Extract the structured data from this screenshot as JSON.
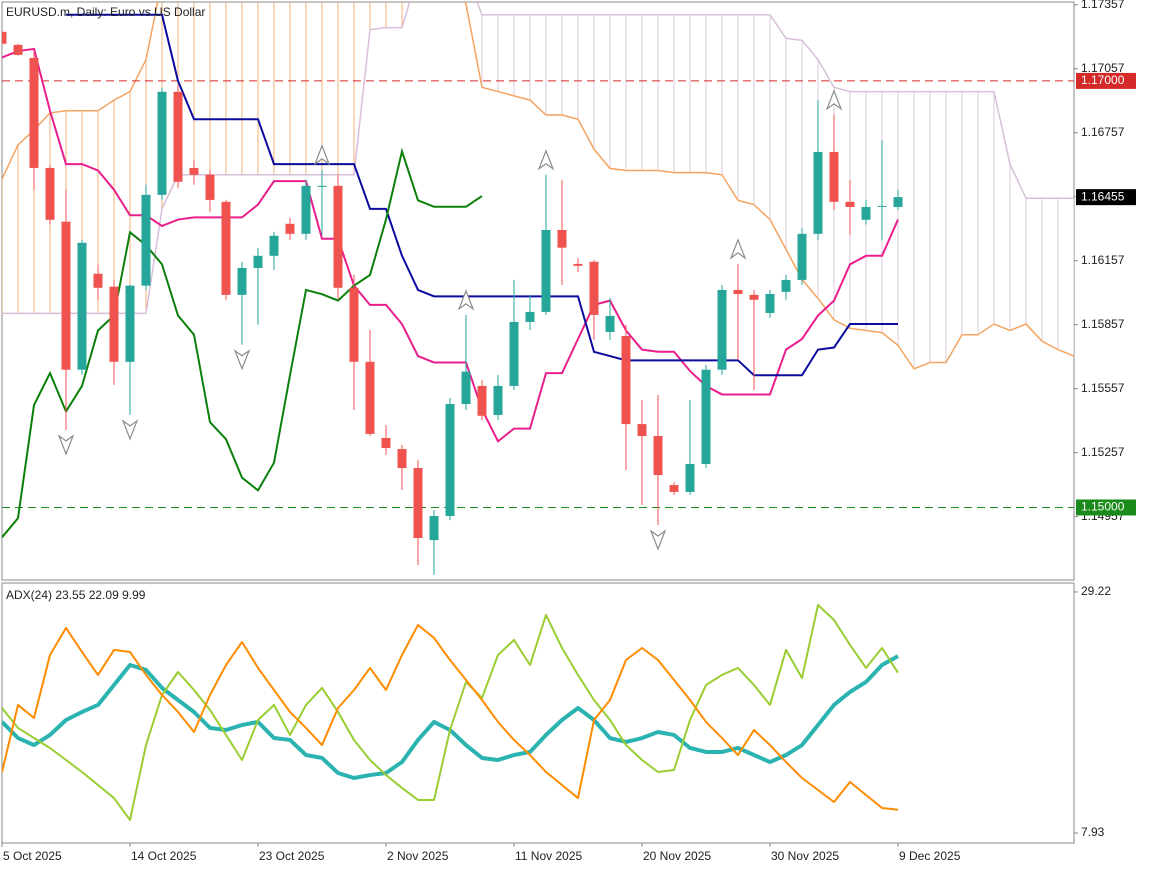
{
  "chart_data": [
    {
      "type": "candlestick",
      "title": "EURUSD.m, Daily:  Euro vs US Dollar",
      "open": [
        1.1723,
        1.17169,
        1.17108,
        1.16592,
        1.1634,
        1.15646,
        1.16096,
        1.16035,
        1.15683,
        1.1604,
        1.16466,
        1.16949,
        1.16592,
        1.1656,
        1.16433,
        1.15997,
        1.16123,
        1.1618,
        1.1633,
        1.16283,
        1.16503,
        1.16508,
        1.1603,
        1.15683,
        1.15326,
        1.15274,
        1.15185,
        1.14847,
        1.1496,
        1.15485,
        1.1557,
        1.15434,
        1.1557,
        1.1587,
        1.15917,
        1.16301,
        1.16142,
        1.16152,
        1.15823,
        1.15804,
        1.15391,
        1.15335,
        1.15105,
        1.15073,
        1.15204,
        1.15646,
        1.1602,
        1.15997,
        1.15912,
        1.16011,
        1.16067,
        1.16283,
        1.16667,
        1.16433,
        1.16349,
        1.16414,
        1.16409
      ],
      "high": [
        1.17239,
        1.17174,
        1.17136,
        1.16606,
        1.16489,
        1.16255,
        1.16138,
        1.16067,
        1.16043,
        1.16513,
        1.16968,
        1.16982,
        1.1663,
        1.16583,
        1.16442,
        1.16152,
        1.16218,
        1.16292,
        1.16358,
        1.16536,
        1.16583,
        1.1656,
        1.16091,
        1.15832,
        1.15387,
        1.15293,
        1.15223,
        1.14988,
        1.15514,
        1.15903,
        1.15598,
        1.15622,
        1.16067,
        1.15997,
        1.1656,
        1.16536,
        1.1617,
        1.16161,
        1.15982,
        1.15857,
        1.15504,
        1.15528,
        1.15119,
        1.15504,
        1.15668,
        1.16043,
        1.16142,
        1.1602,
        1.1602,
        1.16091,
        1.16311,
        1.16911,
        1.16841,
        1.16536,
        1.16442,
        1.16723,
        1.16489
      ],
      "low": [
        1.17164,
        1.17118,
        1.16489,
        1.16326,
        1.15364,
        1.15622,
        1.15974,
        1.15575,
        1.15434,
        1.1602,
        1.16442,
        1.16499,
        1.16513,
        1.16386,
        1.15974,
        1.15763,
        1.15857,
        1.16114,
        1.16255,
        1.16255,
        1.16278,
        1.15974,
        1.15457,
        1.15335,
        1.15246,
        1.15082,
        1.1473,
        1.14684,
        1.14941,
        1.15457,
        1.1541,
        1.1541,
        1.15551,
        1.15832,
        1.15903,
        1.16043,
        1.16104,
        1.15785,
        1.15785,
        1.15176,
        1.15012,
        1.14918,
        1.15059,
        1.15059,
        1.15185,
        1.15622,
        1.15692,
        1.15551,
        1.15889,
        1.15974,
        1.16043,
        1.16255,
        1.16395,
        1.16278,
        1.16326,
        1.16255,
        1.16395
      ],
      "close": [
        1.17174,
        1.17122,
        1.16592,
        1.16349,
        1.15646,
        1.16241,
        1.1603,
        1.15683,
        1.1604,
        1.16466,
        1.16949,
        1.16527,
        1.1656,
        1.16442,
        1.15997,
        1.16123,
        1.1618,
        1.16274,
        1.16283,
        1.16508,
        1.16508,
        1.1603,
        1.15683,
        1.15345,
        1.15279,
        1.15185,
        1.14857,
        1.1496,
        1.15485,
        1.15637,
        1.1543,
        1.1557,
        1.1587,
        1.15917,
        1.16301,
        1.16218,
        1.16133,
        1.15903,
        1.15898,
        1.15391,
        1.15335,
        1.15152,
        1.15073,
        1.15204,
        1.15646,
        1.1602,
        1.16001,
        1.15974,
        1.16001,
        1.16067,
        1.16283,
        1.16667,
        1.16433,
        1.16409,
        1.16409,
        1.16414,
        1.16455
      ],
      "up_color": "#26a69a",
      "down_color": "#ef5350",
      "series": [
        {
          "color": "#e91e8c",
          "values": [
            1.1711,
            1.1714,
            1.1715,
            1.1686,
            1.1661,
            1.1661,
            1.1658,
            1.1649,
            1.1637,
            1.1637,
            1.1632,
            1.1635,
            1.1636,
            1.1636,
            1.1636,
            1.1636,
            1.1642,
            1.1653,
            1.1653,
            1.1653,
            1.1626,
            1.1626,
            1.1604,
            1.1595,
            1.1595,
            1.1586,
            1.1571,
            1.1568,
            1.1568,
            1.1568,
            1.1546,
            1.1531,
            1.1537,
            1.1537,
            1.1563,
            1.1563,
            1.1579,
            1.1595,
            1.1597,
            1.1583,
            1.1574,
            1.1573,
            1.1573,
            1.1564,
            1.1557,
            1.1553,
            1.1553,
            1.1553,
            1.1553,
            1.1574,
            1.1579,
            1.159,
            1.1597,
            1.1614,
            1.1618,
            1.1618,
            1.1635
          ]
        },
        {
          "color": "#0b0ba0",
          "values": [
            null,
            null,
            null,
            null,
            1.1731,
            1.1731,
            1.1731,
            1.1731,
            1.1731,
            1.1731,
            1.1731,
            1.17,
            1.1682,
            1.1682,
            1.1682,
            1.1682,
            1.1682,
            1.1661,
            1.1661,
            1.1661,
            1.1661,
            1.1661,
            1.1661,
            1.164,
            1.164,
            1.1618,
            1.1602,
            1.1599,
            1.1599,
            1.1599,
            1.1599,
            1.1599,
            1.1599,
            1.1599,
            1.1599,
            1.1599,
            1.1599,
            1.1573,
            1.1571,
            1.1569,
            1.1569,
            1.1569,
            1.1569,
            1.1569,
            1.1569,
            1.1569,
            1.1569,
            1.1562,
            1.1562,
            1.1562,
            1.1562,
            1.1574,
            1.1575,
            1.1586,
            1.1586,
            1.1586,
            1.1586
          ]
        },
        {
          "color": "#0a800a",
          "values": [
            1.1486,
            1.1495,
            1.1548,
            1.1563,
            1.1545,
            1.1557,
            1.1583,
            1.159,
            1.1629,
            1.1623,
            1.1614,
            1.159,
            1.1581,
            1.154,
            1.1532,
            1.1514,
            1.1508,
            1.1521,
            1.1562,
            1.1602,
            1.16,
            1.1597,
            1.1604,
            1.1609,
            1.1635,
            1.1667,
            1.1644,
            1.1641,
            1.1641,
            1.1641,
            1.1646,
            null,
            null,
            null,
            null,
            null,
            null,
            null,
            null,
            null,
            null,
            null,
            null,
            null,
            null,
            null,
            null,
            null,
            null,
            null,
            null,
            null,
            null,
            null,
            null,
            null,
            null
          ]
        }
      ],
      "cloud_series": [
        {
          "color": "#f4a460",
          "values": [
            1.1654,
            1.167,
            1.1677,
            1.1685,
            1.1686,
            1.1686,
            1.1686,
            1.1691,
            1.1695,
            1.171,
            1.1747,
            1.175,
            1.175,
            1.175,
            1.175,
            1.175,
            1.175,
            1.175,
            1.175,
            1.175,
            1.175,
            1.175,
            1.175,
            1.175,
            1.175,
            1.175,
            1.175,
            1.175,
            1.175,
            1.1736,
            1.1697,
            1.1695,
            1.1693,
            1.1691,
            1.1684,
            1.1684,
            1.1682,
            1.1668,
            1.1659,
            1.1658,
            1.1658,
            1.1658,
            1.1657,
            1.1657,
            1.1657,
            1.1656,
            1.1644,
            1.1642,
            1.1635,
            1.1621,
            1.1607,
            1.1598,
            1.1588,
            1.1584,
            1.1583,
            1.1582,
            1.1576,
            1.1565,
            1.1568,
            1.1568,
            1.1581,
            1.1581,
            1.1586,
            1.1583,
            1.1586,
            1.1578,
            1.1574,
            1.1571
          ]
        },
        {
          "color": "#d8bfd8",
          "values": [
            1.1591,
            1.1591,
            1.1591,
            1.1591,
            1.1591,
            1.1591,
            1.1591,
            1.1591,
            1.1591,
            1.1591,
            1.164,
            1.1656,
            1.1656,
            1.1656,
            1.1656,
            1.1656,
            1.1656,
            1.1656,
            1.1656,
            1.1656,
            1.1656,
            1.1656,
            1.1656,
            1.1724,
            1.1725,
            1.1725,
            1.175,
            1.175,
            1.175,
            1.175,
            1.1731,
            1.1731,
            1.1731,
            1.1731,
            1.1731,
            1.1731,
            1.1731,
            1.1731,
            1.1731,
            1.1731,
            1.1731,
            1.1731,
            1.1731,
            1.1731,
            1.1731,
            1.1731,
            1.1731,
            1.1731,
            1.1731,
            1.172,
            1.1719,
            1.171,
            1.1697,
            1.1695,
            1.1695,
            1.1695,
            1.1695,
            1.1695,
            1.1695,
            1.1695,
            1.1695,
            1.1695,
            1.1695,
            1.1661,
            1.1645,
            1.1645,
            1.1645,
            1.1645
          ]
        }
      ],
      "fractal_color": "#8c8c8c",
      "fractals_up": [
        null,
        null,
        null,
        null,
        null,
        null,
        null,
        null,
        null,
        null,
        null,
        null,
        null,
        null,
        null,
        null,
        null,
        null,
        null,
        null,
        1.16583,
        null,
        null,
        null,
        null,
        null,
        null,
        null,
        null,
        1.15903,
        null,
        null,
        null,
        null,
        1.1656,
        null,
        null,
        null,
        null,
        null,
        null,
        null,
        null,
        null,
        null,
        null,
        1.16142,
        null,
        null,
        null,
        null,
        null,
        1.16841,
        null,
        null,
        null,
        null
      ],
      "fractals_down": [
        null,
        null,
        null,
        null,
        1.15364,
        null,
        null,
        null,
        1.15434,
        null,
        null,
        null,
        null,
        null,
        null,
        1.15763,
        null,
        null,
        null,
        null,
        null,
        null,
        null,
        null,
        null,
        null,
        null,
        1.14684,
        null,
        null,
        null,
        null,
        null,
        null,
        null,
        null,
        null,
        null,
        null,
        null,
        null,
        1.14918,
        null,
        null,
        null,
        null,
        null,
        null,
        null,
        null,
        null,
        null,
        null,
        null,
        null,
        null,
        null
      ],
      "ylim": [
        1.1466,
        1.1737
      ],
      "yticks": [
        1.17357,
        1.17057,
        1.16757,
        1.16457,
        1.16157,
        1.15857,
        1.15557,
        1.15257,
        1.14957
      ],
      "levels": [
        {
          "value": 1.17,
          "label": "1.17000",
          "color": "#d42a2a"
        },
        {
          "value": 1.15,
          "label": "1.15000",
          "color": "#1a8a1a"
        }
      ],
      "last_price": 1.16455
    },
    {
      "type": "line",
      "label": "ADX(24) 23.55 22.09 9.99",
      "categories": [
        "5 Oct 2025",
        null,
        null,
        null,
        null,
        null,
        null,
        null,
        "14 Oct 2025",
        null,
        null,
        null,
        null,
        null,
        null,
        null,
        "23 Oct 2025",
        null,
        null,
        null,
        null,
        null,
        null,
        null,
        "2 Nov 2025",
        null,
        null,
        null,
        null,
        null,
        null,
        null,
        "11 Nov 2025",
        null,
        null,
        null,
        null,
        null,
        null,
        null,
        "20 Nov 2025",
        null,
        null,
        null,
        null,
        null,
        null,
        null,
        "30 Nov 2025",
        null,
        null,
        null,
        null,
        null,
        null,
        null,
        "9 Dec 2025"
      ],
      "series": [
        {
          "color": "#2ab3b0",
          "width": 4,
          "values": [
            17.74,
            16.32,
            15.7,
            16.59,
            17.91,
            18.62,
            19.24,
            21.0,
            22.77,
            22.33,
            20.74,
            19.68,
            18.62,
            17.21,
            17.03,
            17.47,
            17.74,
            16.32,
            16.15,
            14.82,
            14.56,
            13.23,
            12.79,
            13.05,
            13.23,
            14.2,
            16.15,
            17.74,
            17.03,
            15.7,
            14.56,
            14.38,
            14.82,
            15.09,
            16.59,
            17.91,
            18.97,
            17.91,
            16.32,
            15.97,
            16.32,
            16.85,
            16.59,
            15.44,
            15.09,
            15.09,
            15.44,
            14.82,
            14.2,
            14.82,
            15.7,
            17.47,
            19.24,
            20.39,
            21.27,
            22.77,
            23.55
          ]
        },
        {
          "color": "#9acd32",
          "width": 2,
          "values": [
            18.97,
            17.21,
            16.32,
            15.44,
            14.38,
            13.32,
            12.17,
            11.02,
            9.08,
            15.7,
            20.12,
            22.15,
            20.56,
            18.8,
            16.59,
            14.38,
            17.91,
            19.24,
            16.59,
            19.24,
            20.74,
            18.62,
            16.15,
            14.38,
            13.05,
            11.91,
            10.85,
            10.85,
            17.03,
            21.27,
            19.86,
            23.65,
            24.98,
            22.77,
            27.19,
            24.27,
            21.89,
            19.68,
            17.91,
            15.7,
            14.38,
            13.32,
            13.5,
            17.91,
            21.0,
            21.89,
            22.51,
            21.0,
            19.24,
            24.1,
            21.62,
            28.07,
            26.75,
            24.54,
            22.51,
            24.27,
            22.09
          ]
        },
        {
          "color": "#ff8c00",
          "width": 2,
          "values": [
            13.32,
            19.24,
            18.09,
            23.65,
            26.04,
            23.92,
            21.89,
            24.1,
            23.92,
            21.89,
            20.12,
            18.62,
            16.85,
            20.12,
            22.77,
            24.8,
            22.51,
            20.56,
            18.62,
            17.21,
            15.7,
            18.97,
            20.56,
            22.51,
            20.56,
            23.65,
            26.3,
            25.16,
            23.21,
            21.45,
            19.68,
            17.74,
            16.15,
            14.82,
            13.32,
            12.17,
            11.02,
            17.91,
            19.68,
            23.21,
            24.27,
            23.21,
            21.45,
            19.68,
            17.74,
            16.32,
            14.82,
            17.03,
            15.7,
            14.2,
            12.79,
            11.73,
            10.67,
            12.44,
            11.29,
            10.14,
            9.99
          ]
        }
      ],
      "ylim": [
        7.05,
        30.01
      ],
      "yticks": [
        29.22,
        7.93
      ]
    }
  ]
}
